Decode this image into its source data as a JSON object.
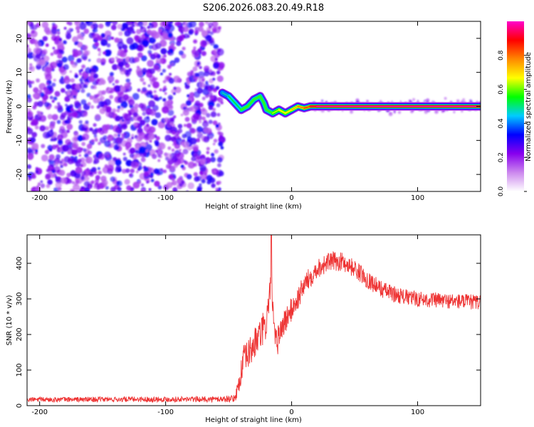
{
  "title": "S206.2026.083.20.49.R18",
  "colors": {
    "snr_line": "#ee3333",
    "axis": "#000000",
    "background": "#ffffff"
  },
  "chart_data": [
    {
      "type": "heatmap",
      "name": "spectrogram",
      "xlabel": "Height of straight line (km)",
      "ylabel": "Frequency (Hz)",
      "xlim": [
        -210,
        150
      ],
      "ylim": [
        -25,
        25
      ],
      "xticks": [
        -200,
        -100,
        0,
        100
      ],
      "yticks": [
        -20,
        -10,
        0,
        10,
        20
      ],
      "colorbar": {
        "label": "Normalized spectral amplitude",
        "range": [
          0,
          1
        ],
        "ticks": [
          0.0,
          0.2,
          0.4,
          0.6,
          0.8
        ],
        "colormap": [
          "#ffffff",
          "#cc88ee",
          "#8800ee",
          "#0000ff",
          "#00ccff",
          "#00ff00",
          "#ffff00",
          "#ff8800",
          "#ff0000",
          "#ff00cc"
        ]
      },
      "noise_region_x": [
        -210,
        -55
      ],
      "signal_track": {
        "x": [
          -55,
          -50,
          -45,
          -40,
          -35,
          -30,
          -25,
          -22,
          -20,
          -15,
          -10,
          -5,
          0,
          5,
          10,
          15,
          20,
          150
        ],
        "freq": [
          4,
          3,
          1,
          -1,
          0,
          2,
          3,
          1,
          -1,
          -2,
          -1,
          -2,
          -1,
          0,
          -0.5,
          0,
          0,
          0
        ],
        "amplitude": [
          0.4,
          0.45,
          0.45,
          0.5,
          0.5,
          0.5,
          0.5,
          0.5,
          0.5,
          0.55,
          0.6,
          0.6,
          0.65,
          0.7,
          0.75,
          0.85,
          0.9,
          0.92
        ]
      }
    },
    {
      "type": "line",
      "name": "snr",
      "xlabel": "Height of straight line (km)",
      "ylabel": "SNR (10 * v/v)",
      "xlim": [
        -210,
        150
      ],
      "ylim": [
        0,
        480
      ],
      "xticks": [
        -200,
        -100,
        0,
        100
      ],
      "yticks": [
        0,
        100,
        200,
        300,
        400
      ],
      "trend": {
        "x": [
          -210,
          -100,
          -60,
          -45,
          -42,
          -38,
          -35,
          -30,
          -25,
          -20,
          -18,
          -16,
          -14,
          -12,
          -10,
          -5,
          0,
          5,
          10,
          20,
          30,
          40,
          50,
          60,
          70,
          80,
          90,
          100,
          120,
          150
        ],
        "y": [
          17,
          18,
          18,
          20,
          60,
          130,
          140,
          170,
          200,
          230,
          300,
          330,
          200,
          170,
          200,
          240,
          270,
          300,
          340,
          385,
          405,
          405,
          385,
          355,
          330,
          315,
          305,
          300,
          295,
          290
        ]
      },
      "noise_amplitude": {
        "x": [
          -210,
          -60,
          -45,
          -40,
          -20,
          0,
          20,
          60,
          100,
          150
        ],
        "y": [
          7,
          8,
          10,
          40,
          50,
          35,
          28,
          25,
          22,
          22
        ]
      },
      "spike": {
        "x": -16,
        "y": 480
      }
    }
  ]
}
